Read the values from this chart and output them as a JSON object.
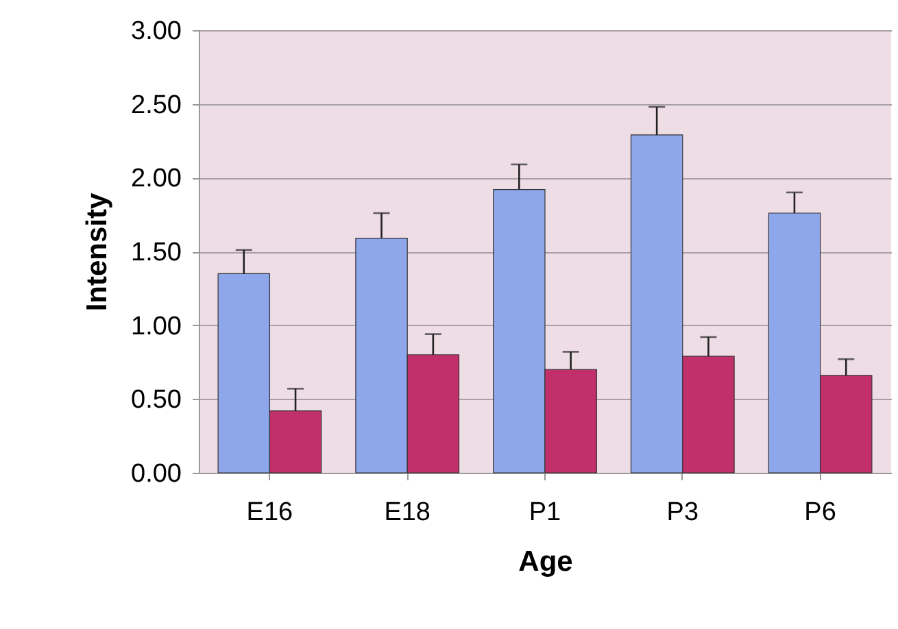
{
  "chart_data": {
    "type": "bar",
    "xlabel": "Age",
    "ylabel": "Intensity",
    "categories": [
      "E16",
      "E18",
      "P1",
      "P3",
      "P6"
    ],
    "series": [
      {
        "color": "#8ea6ea",
        "values": [
          1.35,
          1.59,
          1.92,
          2.29,
          1.76
        ],
        "errors": [
          [
            1.35,
            1.51
          ],
          [
            1.59,
            1.76
          ],
          [
            1.92,
            2.09
          ],
          [
            2.29,
            2.48
          ],
          [
            1.76,
            1.9
          ]
        ]
      },
      {
        "color": "#c2306c",
        "values": [
          0.42,
          0.8,
          0.7,
          0.79,
          0.66
        ],
        "errors": [
          [
            0.42,
            0.57
          ],
          [
            0.8,
            0.94
          ],
          [
            0.7,
            0.82
          ],
          [
            0.79,
            0.92
          ],
          [
            0.66,
            0.77
          ]
        ]
      }
    ],
    "ylim": [
      0,
      3
    ],
    "yticks": [
      {
        "value": 0,
        "label": "0.00"
      },
      {
        "value": 0.5,
        "label": "0.50"
      },
      {
        "value": 1,
        "label": "1.00"
      },
      {
        "value": 1.5,
        "label": "1.50"
      },
      {
        "value": 2,
        "label": "2.00"
      },
      {
        "value": 2.5,
        "label": "2.50"
      },
      {
        "value": 3,
        "label": "3.00"
      }
    ],
    "grid": "y",
    "legend": false
  }
}
